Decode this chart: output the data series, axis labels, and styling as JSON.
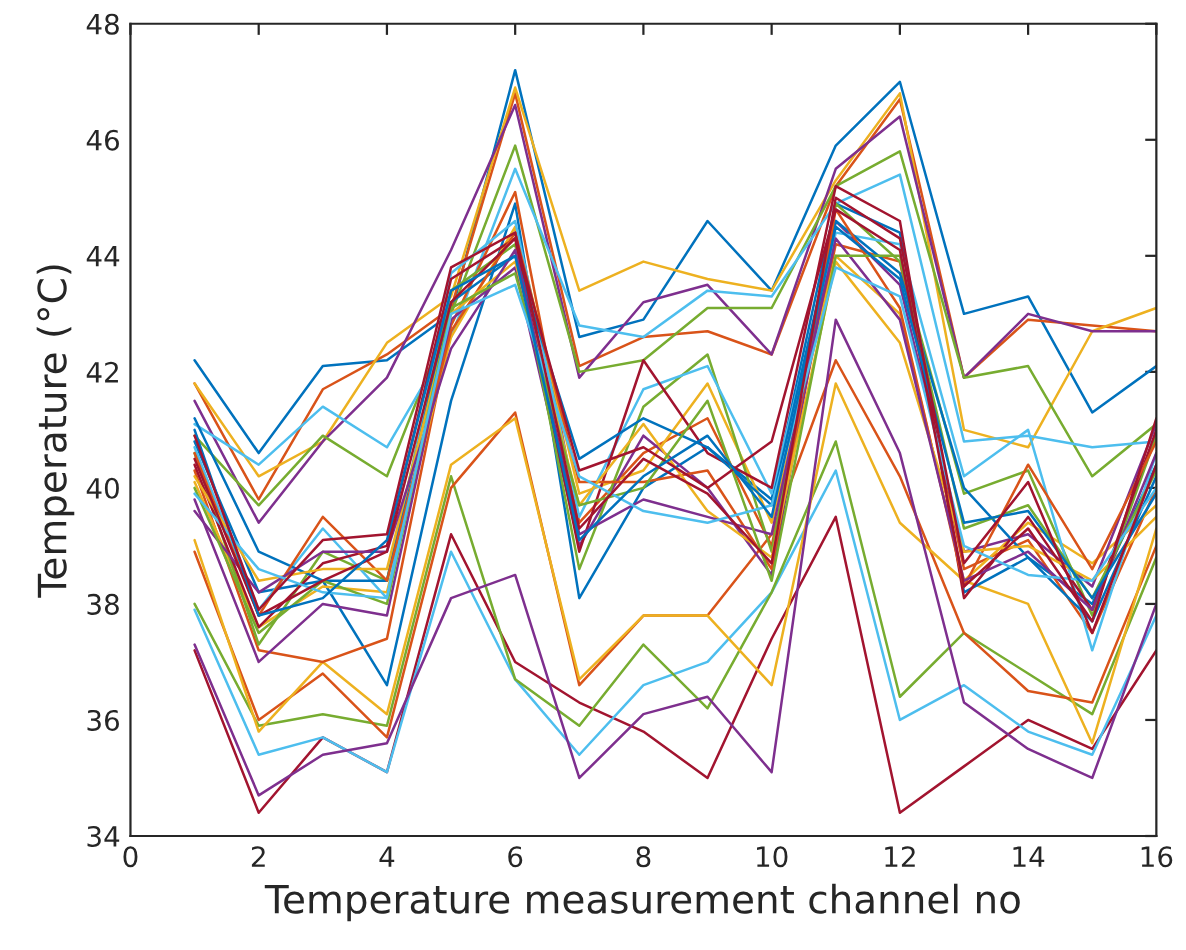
{
  "chart_data": {
    "type": "line",
    "xlabel": "Temperature measurement channel no",
    "ylabel": "Temperature (°C)",
    "x": [
      1,
      2,
      3,
      4,
      5,
      6,
      7,
      8,
      9,
      10,
      11,
      12,
      13,
      14,
      15,
      16
    ],
    "xlim": [
      0,
      16
    ],
    "xticks": [
      0,
      2,
      4,
      6,
      8,
      10,
      12,
      14,
      16
    ],
    "ylim": [
      34,
      48
    ],
    "yticks": [
      34,
      36,
      38,
      40,
      42,
      44,
      46,
      48
    ],
    "grid": false,
    "marker": "none",
    "line_style": "solid",
    "series": [
      {
        "color": "#0072bd",
        "values": [
          42.2,
          40.6,
          42.1,
          42.2,
          43.0,
          47.2,
          42.6,
          42.9,
          44.6,
          43.4,
          45.9,
          47.0,
          43.0,
          43.3,
          41.3,
          42.1
        ]
      },
      {
        "color": "#d95319",
        "values": [
          41.8,
          39.8,
          41.7,
          42.3,
          43.1,
          46.8,
          42.1,
          42.6,
          42.7,
          42.3,
          45.2,
          46.7,
          41.9,
          42.9,
          42.8,
          42.7
        ]
      },
      {
        "color": "#edb120",
        "values": [
          41.8,
          40.2,
          40.8,
          42.5,
          43.3,
          46.9,
          43.4,
          43.9,
          43.6,
          43.4,
          45.3,
          46.8,
          41.0,
          40.7,
          42.7,
          43.1
        ]
      },
      {
        "color": "#7e2f8e",
        "values": [
          41.5,
          39.4,
          40.8,
          41.9,
          44.1,
          46.6,
          41.9,
          43.2,
          43.5,
          42.3,
          45.5,
          46.4,
          41.9,
          43.0,
          42.7,
          42.7
        ]
      },
      {
        "color": "#77ac30",
        "values": [
          40.9,
          39.7,
          40.9,
          40.2,
          43.0,
          45.9,
          42.0,
          42.2,
          43.1,
          43.1,
          45.2,
          45.8,
          41.9,
          42.1,
          40.2,
          41.1
        ]
      },
      {
        "color": "#4dbeee",
        "values": [
          41.1,
          40.4,
          41.4,
          40.7,
          42.6,
          45.5,
          42.8,
          42.6,
          43.4,
          43.3,
          44.9,
          45.4,
          40.8,
          40.9,
          40.7,
          40.8
        ]
      },
      {
        "color": "#a2142f",
        "values": [
          37.2,
          34.4,
          35.7,
          35.1,
          39.2,
          37.0,
          36.3,
          35.8,
          35.0,
          37.4,
          39.5,
          34.4,
          35.2,
          36.0,
          35.5,
          37.2
        ]
      },
      {
        "color": "#4dbeee",
        "values": [
          37.9,
          35.4,
          35.7,
          35.1,
          38.9,
          36.7,
          35.4,
          36.6,
          37.0,
          38.2,
          40.3,
          36.0,
          36.6,
          35.8,
          35.4,
          37.8
        ]
      },
      {
        "color": "#77ac30",
        "values": [
          38.0,
          35.9,
          36.1,
          35.9,
          40.2,
          36.7,
          35.9,
          37.3,
          36.2,
          38.2,
          40.8,
          36.4,
          37.5,
          36.8,
          36.1,
          38.8
        ]
      },
      {
        "color": "#d95319",
        "values": [
          38.9,
          36.0,
          36.8,
          35.7,
          40.0,
          41.3,
          36.6,
          37.8,
          37.8,
          39.2,
          42.2,
          40.2,
          37.5,
          36.5,
          36.3,
          39.0
        ]
      },
      {
        "color": "#edb120",
        "values": [
          39.1,
          35.8,
          37.0,
          36.1,
          40.4,
          41.2,
          36.7,
          37.8,
          37.8,
          36.6,
          41.8,
          39.4,
          38.4,
          38.0,
          35.6,
          39.3
        ]
      },
      {
        "color": "#7e2f8e",
        "values": [
          37.3,
          34.7,
          35.4,
          35.6,
          38.1,
          38.5,
          35.0,
          36.1,
          36.4,
          35.1,
          42.9,
          40.6,
          36.3,
          35.5,
          35.0,
          38.0
        ]
      },
      {
        "color": "#0072bd",
        "values": [
          40.8,
          38.2,
          38.4,
          36.6,
          41.5,
          44.9,
          38.1,
          40.0,
          40.7,
          39.8,
          44.9,
          44.4,
          38.2,
          38.8,
          38.0,
          40.4
        ]
      },
      {
        "color": "#d95319",
        "values": [
          40.3,
          37.2,
          37.0,
          37.4,
          42.8,
          45.1,
          39.4,
          40.6,
          41.2,
          39.0,
          44.2,
          43.9,
          38.6,
          39.1,
          37.5,
          40.0
        ]
      },
      {
        "color": "#edb120",
        "values": [
          40.1,
          37.6,
          38.3,
          38.2,
          42.6,
          44.5,
          39.9,
          40.3,
          41.8,
          39.4,
          44.0,
          43.0,
          38.4,
          39.4,
          38.7,
          39.7
        ]
      },
      {
        "color": "#7e2f8e",
        "values": [
          39.8,
          37.0,
          38.0,
          37.8,
          42.9,
          43.8,
          39.0,
          40.9,
          40.0,
          38.5,
          44.6,
          43.5,
          38.9,
          39.2,
          38.3,
          41.1
        ]
      },
      {
        "color": "#77ac30",
        "values": [
          40.6,
          37.3,
          38.9,
          38.4,
          43.4,
          44.2,
          38.6,
          41.4,
          42.3,
          38.9,
          44.9,
          43.9,
          39.9,
          40.3,
          37.8,
          40.9
        ]
      },
      {
        "color": "#4dbeee",
        "values": [
          40.7,
          37.9,
          39.3,
          38.1,
          43.7,
          44.6,
          39.5,
          41.7,
          42.1,
          39.9,
          44.4,
          44.2,
          40.2,
          41.0,
          37.2,
          40.6
        ]
      },
      {
        "color": "#a2142f",
        "values": [
          40.4,
          37.6,
          38.7,
          39.0,
          43.6,
          44.3,
          38.9,
          42.2,
          40.6,
          40.0,
          45.2,
          44.6,
          38.1,
          39.5,
          37.9,
          41.0
        ]
      },
      {
        "color": "#0072bd",
        "values": [
          41.2,
          38.9,
          38.4,
          38.4,
          43.2,
          44.0,
          40.5,
          41.2,
          40.7,
          39.7,
          44.6,
          43.7,
          40.0,
          38.8,
          37.7,
          40.2
        ]
      },
      {
        "color": "#d95319",
        "values": [
          40.6,
          37.8,
          39.5,
          38.4,
          42.7,
          44.4,
          40.1,
          40.1,
          40.3,
          38.6,
          44.8,
          43.1,
          38.3,
          40.4,
          38.6,
          40.8
        ]
      },
      {
        "color": "#edb120",
        "values": [
          40.2,
          38.4,
          38.6,
          38.6,
          43.0,
          43.9,
          39.7,
          41.1,
          39.6,
          38.8,
          43.9,
          42.5,
          38.9,
          39.0,
          38.4,
          39.5
        ]
      },
      {
        "color": "#7e2f8e",
        "values": [
          39.6,
          38.2,
          38.9,
          38.9,
          42.4,
          44.1,
          39.2,
          39.8,
          39.5,
          39.2,
          44.3,
          42.9,
          38.4,
          38.9,
          37.9,
          40.6
        ]
      },
      {
        "color": "#77ac30",
        "values": [
          40.0,
          37.5,
          38.4,
          38.0,
          43.1,
          43.7,
          39.7,
          40.0,
          41.5,
          38.4,
          44.0,
          44.0,
          39.3,
          39.7,
          38.1,
          40.3
        ]
      },
      {
        "color": "#4dbeee",
        "values": [
          39.9,
          38.6,
          38.2,
          38.1,
          43.0,
          43.5,
          40.2,
          39.6,
          39.4,
          39.7,
          43.8,
          43.3,
          39.0,
          38.5,
          38.4,
          40.0
        ]
      },
      {
        "color": "#a2142f",
        "values": [
          40.5,
          37.8,
          38.4,
          38.9,
          43.2,
          44.3,
          40.3,
          40.7,
          40.0,
          40.8,
          44.8,
          44.1,
          38.3,
          39.3,
          37.7,
          41.2
        ]
      },
      {
        "color": "#0072bd",
        "values": [
          41.0,
          37.8,
          38.1,
          39.1,
          43.4,
          44.0,
          39.1,
          40.2,
          40.9,
          39.5,
          44.5,
          43.6,
          39.4,
          39.6,
          38.1,
          39.9
        ]
      },
      {
        "color": "#a2142f",
        "values": [
          40.9,
          37.9,
          39.1,
          39.2,
          43.8,
          44.4,
          39.3,
          40.5,
          39.9,
          38.7,
          45.0,
          44.3,
          38.7,
          40.1,
          37.5,
          40.4
        ]
      }
    ]
  }
}
